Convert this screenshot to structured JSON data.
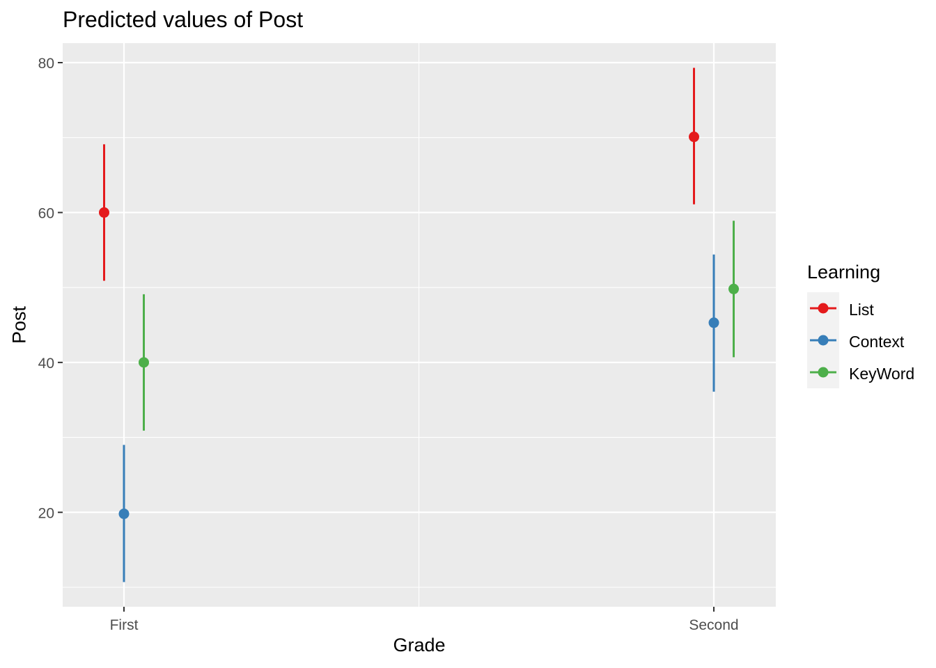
{
  "chart_data": {
    "type": "scatter",
    "title": "Predicted values of Post",
    "xlabel": "Grade",
    "ylabel": "Post",
    "categories": [
      "First",
      "Second"
    ],
    "ylim": [
      7.4,
      82.6
    ],
    "yticks": [
      20,
      40,
      60,
      80
    ],
    "grid": true,
    "legend": {
      "title": "Learning",
      "position": "right"
    },
    "series": [
      {
        "name": "List",
        "color": "#E41A1C",
        "values": [
          60,
          70.1
        ],
        "lower": [
          50.9,
          61.1
        ],
        "upper": [
          69.1,
          79.3
        ]
      },
      {
        "name": "Context",
        "color": "#377EB8",
        "values": [
          19.8,
          45.3
        ],
        "lower": [
          10.7,
          36.1
        ],
        "upper": [
          29,
          54.4
        ]
      },
      {
        "name": "KeyWord",
        "color": "#4DAF4A",
        "values": [
          40,
          49.8
        ],
        "lower": [
          30.9,
          40.7
        ],
        "upper": [
          49.1,
          58.9
        ]
      }
    ]
  }
}
